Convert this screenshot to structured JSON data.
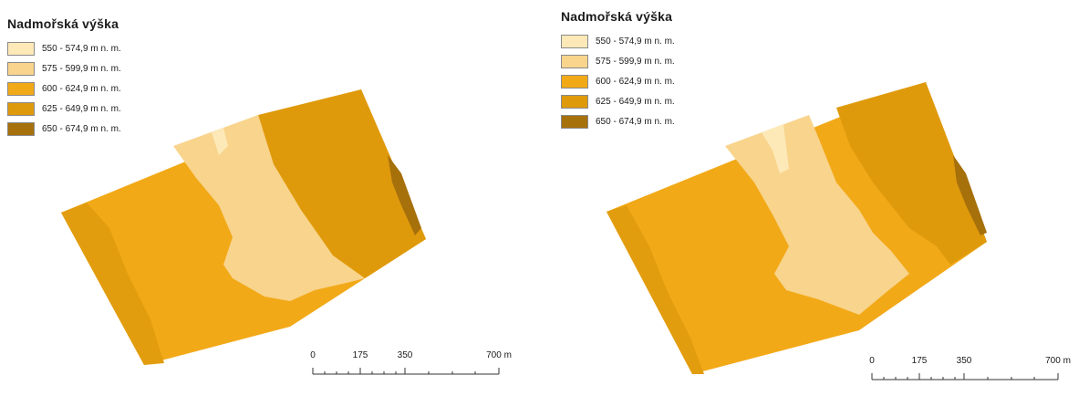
{
  "legend_colors": [
    "#fde9b8",
    "#f8d48c",
    "#f2a918",
    "#df9a0c",
    "#a6700b"
  ],
  "maps": [
    {
      "title": "Nadmořská výška",
      "legend": [
        {
          "label": "550 - 574,9 m n. m.",
          "color": "#fde9b8"
        },
        {
          "label": "575 - 599,9 m n. m.",
          "color": "#f8d48c"
        },
        {
          "label": "600 - 624,9 m n. m.",
          "color": "#f2a918"
        },
        {
          "label": "625 - 649,9 m n. m.",
          "color": "#df9a0c"
        },
        {
          "label": "650 - 674,9 m n. m.",
          "color": "#a6700b"
        }
      ],
      "scale": {
        "labels": [
          "0",
          "175",
          "350",
          "700 m"
        ]
      }
    },
    {
      "title": "Nadmořská výška",
      "legend": [
        {
          "label": "550 - 574,9 m n. m.",
          "color": "#fde9b8"
        },
        {
          "label": "575 - 599,9 m n. m.",
          "color": "#f8d48c"
        },
        {
          "label": "600 - 624,9 m n. m.",
          "color": "#f2a918"
        },
        {
          "label": "625 - 649,9 m n. m.",
          "color": "#df9a0c"
        },
        {
          "label": "650 - 674,9 m n. m.",
          "color": "#a6700b"
        }
      ],
      "scale": {
        "labels": [
          "0",
          "175",
          "350",
          "700 m"
        ]
      }
    }
  ]
}
